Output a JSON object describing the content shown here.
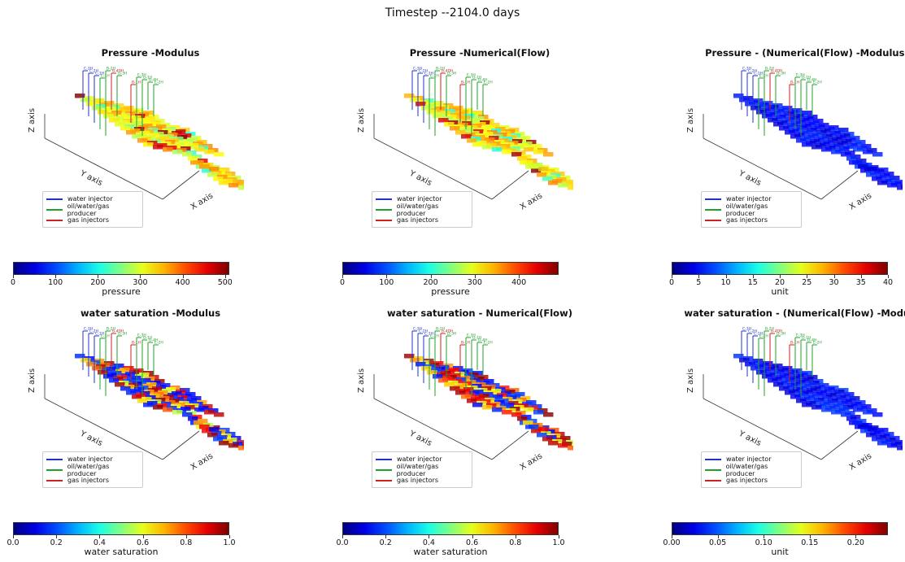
{
  "suptitle": "Timestep --2104.0 days",
  "colors": {
    "water_injector": "#1f33cc",
    "producer": "#22a02a",
    "gas_injector": "#cc2222"
  },
  "legend": [
    "water injector",
    "oil/water/gas producer",
    "gas injectors"
  ],
  "axes": {
    "x": "X axis",
    "y": "Y axis",
    "z": "Z axis"
  },
  "panels": [
    {
      "title": "Pressure -Modulus",
      "field": "pressure-mixed",
      "colorbar": {
        "label": "pressure",
        "min": 0,
        "max": 510,
        "ticks": [
          "0",
          "100",
          "200",
          "300",
          "400",
          "500"
        ]
      }
    },
    {
      "title": "Pressure -Numerical(Flow)",
      "field": "pressure-mixed",
      "colorbar": {
        "label": "pressure",
        "min": 0,
        "max": 490,
        "ticks": [
          "0",
          "100",
          "200",
          "300",
          "400"
        ]
      }
    },
    {
      "title": "Pressure - (Numerical(Flow) -Modulus))",
      "field": "low",
      "colorbar": {
        "label": "unit",
        "min": 0,
        "max": 40,
        "ticks": [
          "0",
          "5",
          "10",
          "15",
          "20",
          "25",
          "30",
          "35",
          "40"
        ]
      }
    },
    {
      "title": "water saturation -Modulus",
      "field": "saturation",
      "colorbar": {
        "label": "water saturation",
        "min": 0,
        "max": 1,
        "ticks": [
          "0.0",
          "0.2",
          "0.4",
          "0.6",
          "0.8",
          "1.0"
        ]
      }
    },
    {
      "title": "water saturation - Numerical(Flow)",
      "field": "saturation",
      "colorbar": {
        "label": "water saturation",
        "min": 0,
        "max": 1,
        "ticks": [
          "0.0",
          "0.2",
          "0.4",
          "0.6",
          "0.8",
          "1.0"
        ]
      }
    },
    {
      "title": "water saturation - (Numerical(Flow) -Modulus))",
      "field": "low",
      "colorbar": {
        "label": "unit",
        "min": 0,
        "max": 0.235,
        "ticks": [
          "0.00",
          "0.05",
          "0.10",
          "0.15",
          "0.20"
        ]
      }
    }
  ],
  "chart_data": [
    {
      "type": "heatmap",
      "title": "Pressure -Modulus",
      "xlabel": "X axis",
      "ylabel": "Y axis",
      "zlabel": "Z axis",
      "colorbar_label": "pressure",
      "colorbar_range": [
        0,
        510
      ],
      "legend": [
        "water injector",
        "oil/water/gas producer",
        "gas injectors"
      ]
    },
    {
      "type": "heatmap",
      "title": "Pressure -Numerical(Flow)",
      "xlabel": "X axis",
      "ylabel": "Y axis",
      "zlabel": "Z axis",
      "colorbar_label": "pressure",
      "colorbar_range": [
        0,
        490
      ],
      "legend": [
        "water injector",
        "oil/water/gas producer",
        "gas injectors"
      ]
    },
    {
      "type": "heatmap",
      "title": "Pressure - (Numerical(Flow) -Modulus))",
      "xlabel": "X axis",
      "ylabel": "Y axis",
      "zlabel": "Z axis",
      "colorbar_label": "unit",
      "colorbar_range": [
        0,
        40
      ],
      "legend": [
        "water injector",
        "oil/water/gas producer",
        "gas injectors"
      ]
    },
    {
      "type": "heatmap",
      "title": "water saturation -Modulus",
      "xlabel": "X axis",
      "ylabel": "Y axis",
      "zlabel": "Z axis",
      "colorbar_label": "water saturation",
      "colorbar_range": [
        0,
        1
      ],
      "legend": [
        "water injector",
        "oil/water/gas producer",
        "gas injectors"
      ]
    },
    {
      "type": "heatmap",
      "title": "water saturation - Numerical(Flow)",
      "xlabel": "X axis",
      "ylabel": "Y axis",
      "zlabel": "Z axis",
      "colorbar_label": "water saturation",
      "colorbar_range": [
        0,
        1
      ],
      "legend": [
        "water injector",
        "oil/water/gas producer",
        "gas injectors"
      ]
    },
    {
      "type": "heatmap",
      "title": "water saturation - (Numerical(Flow) -Modulus))",
      "xlabel": "X axis",
      "ylabel": "Y axis",
      "zlabel": "Z axis",
      "colorbar_label": "unit",
      "colorbar_range": [
        0,
        0.235
      ],
      "legend": [
        "water injector",
        "oil/water/gas producer",
        "gas injectors"
      ]
    }
  ]
}
